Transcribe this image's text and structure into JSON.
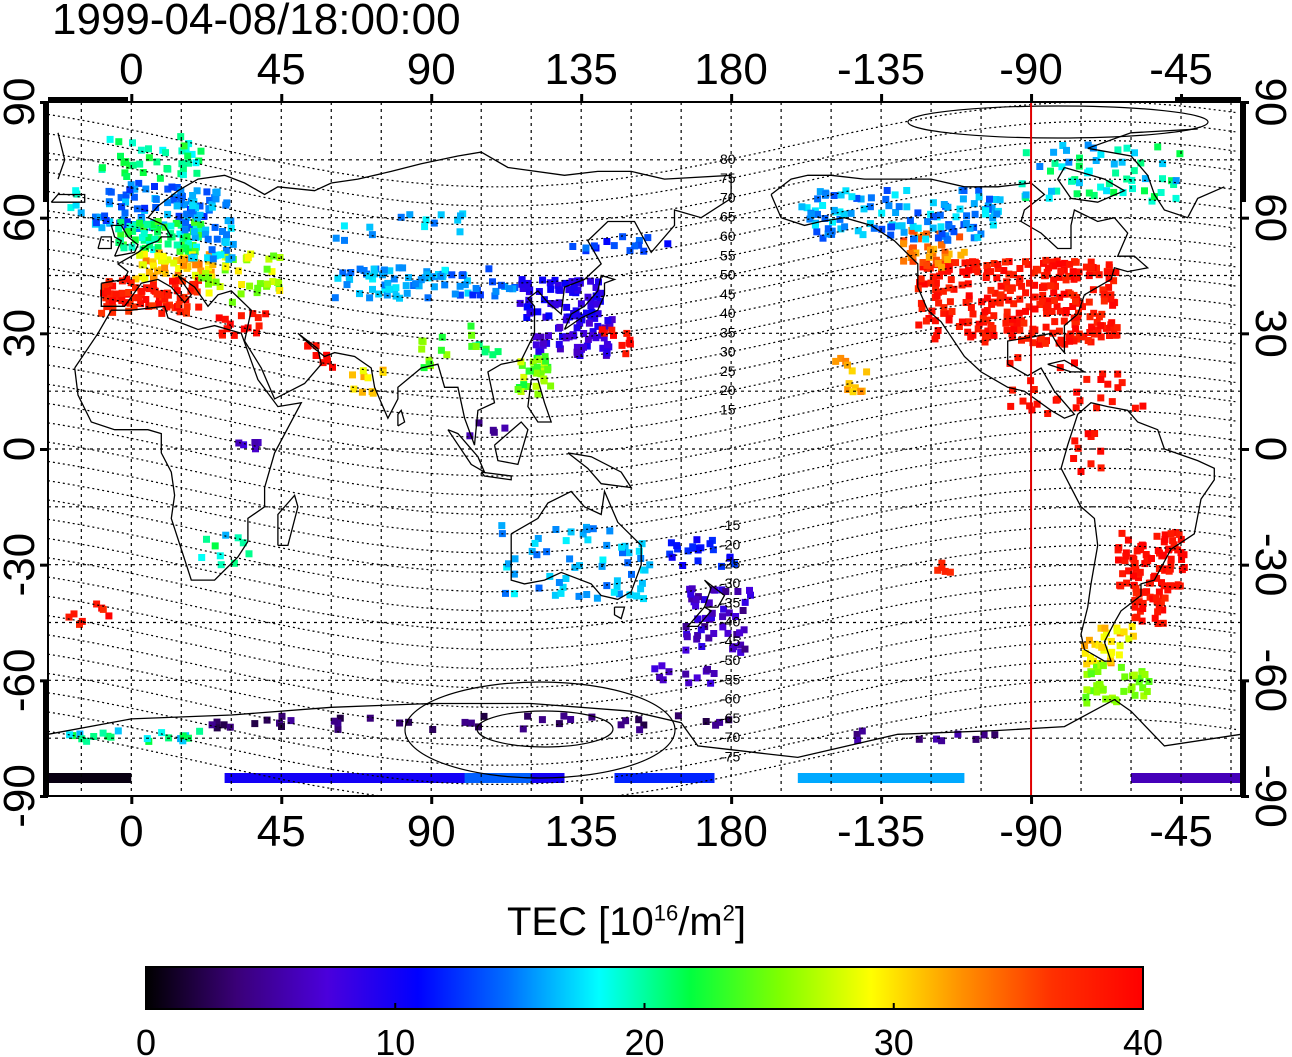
{
  "title": "1999-04-08/18:00:00",
  "colorbar": {
    "title_prefix": "TEC  [10",
    "title_exp1": "16",
    "title_mid": "/m",
    "title_exp2": "2",
    "title_suffix": "]",
    "ticks": [
      "0",
      "10",
      "20",
      "30",
      "40"
    ],
    "range": [
      0,
      40
    ],
    "colors": [
      "#000000",
      "#3a0078",
      "#4b00dc",
      "#0000ff",
      "#0070ff",
      "#00ffff",
      "#00ff40",
      "#80ff00",
      "#ffff00",
      "#ff9000",
      "#ff3000",
      "#ff0000"
    ]
  },
  "map": {
    "lon_ticks": [
      "0",
      "45",
      "90",
      "135",
      "180",
      "-135",
      "-90",
      "-45"
    ],
    "lat_ticks": [
      "90",
      "60",
      "30",
      "0",
      "-30",
      "-60",
      "-90"
    ],
    "contour_labels": [
      "80",
      "75",
      "70",
      "65",
      "60",
      "55",
      "50",
      "45",
      "40",
      "35",
      "30",
      "25",
      "20",
      "15",
      "-15",
      "-20",
      "-25",
      "-30",
      "-35",
      "-40",
      "-45",
      "-50",
      "-55",
      "-60",
      "-65",
      "-70",
      "-75"
    ],
    "meridian_line_lon": -90,
    "meridian_line_color": "#e00000"
  }
}
